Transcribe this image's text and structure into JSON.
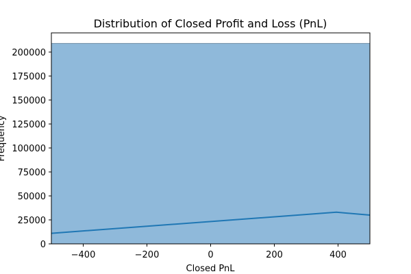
{
  "chart_data": {
    "type": "area",
    "title": "Distribution of Closed Profit and Loss (PnL)",
    "xlabel": "Closed PnL",
    "ylabel": "Frequency",
    "xlim": [
      -500,
      500
    ],
    "ylim": [
      0,
      220000
    ],
    "x_ticks": [
      -400,
      -200,
      0,
      200,
      400
    ],
    "x_tick_labels": [
      "−400",
      "−200",
      "0",
      "200",
      "400"
    ],
    "y_ticks": [
      0,
      25000,
      50000,
      75000,
      100000,
      125000,
      150000,
      175000,
      200000
    ],
    "y_tick_labels": [
      "0",
      "25000",
      "50000",
      "75000",
      "100000",
      "125000",
      "150000",
      "175000",
      "200000"
    ],
    "grid": false,
    "histogram": {
      "name": "",
      "bins": [
        {
          "x0": -500,
          "x1": 500,
          "count": 209000
        }
      ],
      "color": "#8fb9da",
      "edge_color": "#6e8ea6"
    },
    "kde_line": {
      "name": "",
      "x": [
        -500,
        395,
        500
      ],
      "y": [
        11000,
        33000,
        30000
      ],
      "color": "#1f77b4"
    }
  }
}
